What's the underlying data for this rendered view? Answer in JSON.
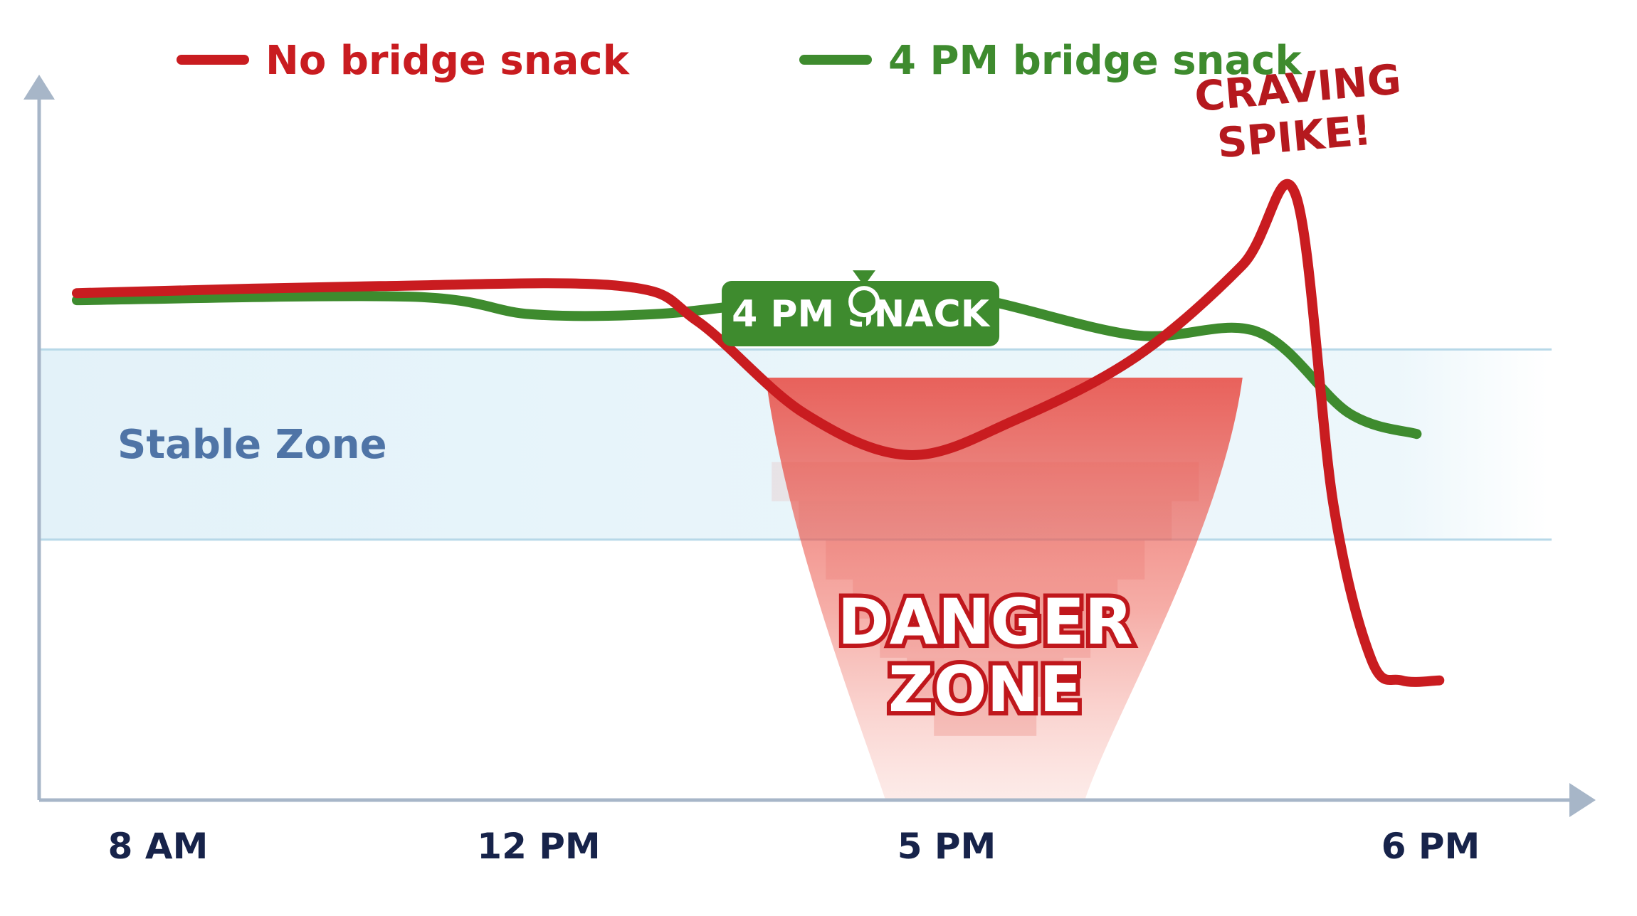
{
  "chart_data": {
    "type": "line",
    "x_ticks": [
      "8 AM",
      "12 PM",
      "5 PM",
      "6 PM"
    ],
    "series": [
      {
        "name": "No bridge snack",
        "color": "#c91c20",
        "points": [
          [
            0.0,
            72.0
          ],
          [
            0.2,
            73.0
          ],
          [
            0.36,
            73.0
          ],
          [
            0.41,
            68.0
          ],
          [
            0.48,
            55.0
          ],
          [
            0.55,
            49.0
          ],
          [
            0.62,
            54.0
          ],
          [
            0.7,
            63.0
          ],
          [
            0.77,
            76.0
          ],
          [
            0.805,
            86.0
          ],
          [
            0.83,
            42.0
          ],
          [
            0.855,
            20.0
          ],
          [
            0.875,
            17.0
          ],
          [
            0.9,
            17.0
          ]
        ]
      },
      {
        "name": "4 PM bridge snack",
        "color": "#3e8b2e",
        "points": [
          [
            0.0,
            71.0
          ],
          [
            0.22,
            71.5
          ],
          [
            0.3,
            69.0
          ],
          [
            0.38,
            69.0
          ],
          [
            0.45,
            70.5
          ],
          [
            0.49,
            71.0
          ],
          [
            0.55,
            72.0
          ],
          [
            0.6,
            71.0
          ],
          [
            0.7,
            66.0
          ],
          [
            0.78,
            66.5
          ],
          [
            0.84,
            55.0
          ],
          [
            0.885,
            52.0
          ]
        ]
      }
    ],
    "ylim": [
      0,
      100
    ],
    "stable_zone": [
      37,
      64
    ],
    "annotations": {
      "stable_zone_label": "Stable Zone",
      "snack_callout": "4 PM SNACK",
      "snack_point": [
        0.52,
        70.8
      ],
      "danger_label": [
        "DANGER",
        "ZONE"
      ],
      "spike_label": [
        "CRAVING",
        "SPIKE!"
      ]
    },
    "grid": false,
    "legend_position": "top"
  },
  "colors": {
    "axis": "#a7b6c8",
    "zone_fill": "#e4f2f9",
    "zone_line": "#b7d8e8",
    "danger": "#e53a35",
    "callout": "#3e8b2e"
  }
}
